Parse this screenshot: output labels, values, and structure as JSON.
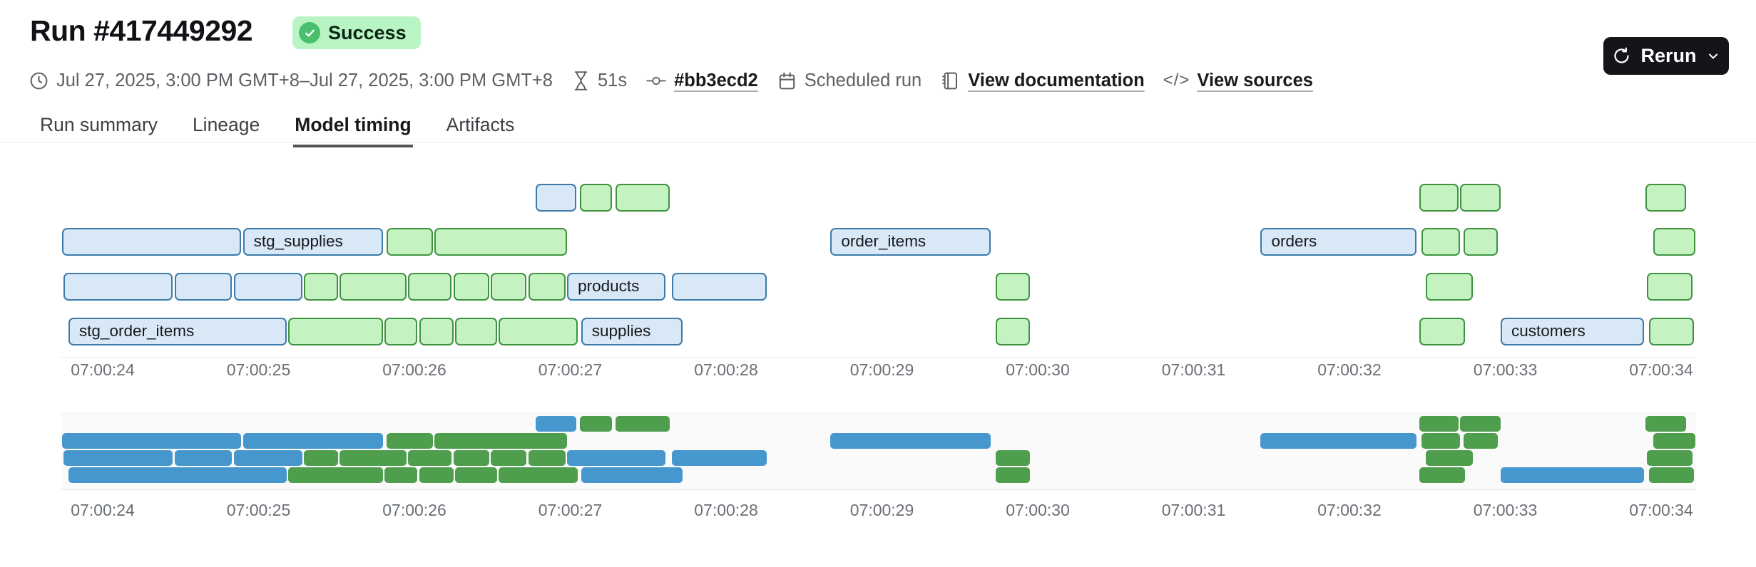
{
  "header": {
    "title": "Run #417449292",
    "status": "Success",
    "meta": {
      "time_range": "Jul 27, 2025, 3:00 PM GMT+8–Jul 27, 2025, 3:00 PM GMT+8",
      "duration": "51s",
      "commit": "#bb3ecd2",
      "trigger": "Scheduled run",
      "docs_link": "View documentation",
      "sources_link": "View sources",
      "code_glyph": "</>"
    },
    "rerun_label": "Rerun"
  },
  "tabs": [
    {
      "label": "Run summary",
      "active": false
    },
    {
      "label": "Lineage",
      "active": false
    },
    {
      "label": "Model timing",
      "active": true
    },
    {
      "label": "Artifacts",
      "active": false
    }
  ],
  "chart_data": {
    "type": "gantt",
    "title": "Model timing",
    "time_origin_label": "07:00:24",
    "x_axis": {
      "tick_labels": [
        "07:00:24",
        "07:00:25",
        "07:00:26",
        "07:00:27",
        "07:00:28",
        "07:00:29",
        "07:00:30",
        "07:00:31",
        "07:00:32",
        "07:00:33",
        "07:00:34"
      ],
      "seconds_per_tick": 1,
      "range_seconds": [
        -0.45,
        10.6
      ],
      "grid": false
    },
    "colors": {
      "bar_blue_fill": "#d8e8f7",
      "bar_blue_border": "#3c7bab",
      "bar_green_fill": "#c4f2c1",
      "bar_green_border": "#3f9340",
      "nav_blue": "#4697ce",
      "nav_green": "#4e9e4e"
    },
    "navigator_mirrors_main": true,
    "rows": [
      {
        "bars": [
          {
            "start": 2.78,
            "end": 3.04,
            "color": "blue",
            "label": ""
          },
          {
            "start": 3.06,
            "end": 3.27,
            "color": "green",
            "label": ""
          },
          {
            "start": 3.29,
            "end": 3.64,
            "color": "green",
            "label": ""
          },
          {
            "start": 8.45,
            "end": 8.7,
            "color": "green",
            "label": ""
          },
          {
            "start": 8.71,
            "end": 8.97,
            "color": "green",
            "label": ""
          },
          {
            "start": 9.9,
            "end": 10.16,
            "color": "green",
            "label": ""
          }
        ]
      },
      {
        "bars": [
          {
            "start": -0.26,
            "end": 0.89,
            "color": "blue",
            "label": ""
          },
          {
            "start": 0.9,
            "end": 1.8,
            "color": "blue",
            "label": "stg_supplies"
          },
          {
            "start": 1.82,
            "end": 2.12,
            "color": "green",
            "label": ""
          },
          {
            "start": 2.13,
            "end": 2.98,
            "color": "green",
            "label": ""
          },
          {
            "start": 4.67,
            "end": 5.7,
            "color": "blue",
            "label": "order_items"
          },
          {
            "start": 7.43,
            "end": 8.43,
            "color": "blue",
            "label": "orders"
          },
          {
            "start": 8.46,
            "end": 8.71,
            "color": "green",
            "label": ""
          },
          {
            "start": 8.73,
            "end": 8.95,
            "color": "green",
            "label": ""
          },
          {
            "start": 9.95,
            "end": 10.22,
            "color": "green",
            "label": ""
          }
        ]
      },
      {
        "bars": [
          {
            "start": -0.25,
            "end": 0.45,
            "color": "blue",
            "label": ""
          },
          {
            "start": 0.46,
            "end": 0.83,
            "color": "blue",
            "label": ""
          },
          {
            "start": 0.84,
            "end": 1.28,
            "color": "blue",
            "label": ""
          },
          {
            "start": 1.29,
            "end": 1.51,
            "color": "green",
            "label": ""
          },
          {
            "start": 1.52,
            "end": 1.95,
            "color": "green",
            "label": ""
          },
          {
            "start": 1.96,
            "end": 2.24,
            "color": "green",
            "label": ""
          },
          {
            "start": 2.25,
            "end": 2.48,
            "color": "green",
            "label": ""
          },
          {
            "start": 2.49,
            "end": 2.72,
            "color": "green",
            "label": ""
          },
          {
            "start": 2.73,
            "end": 2.97,
            "color": "green",
            "label": ""
          },
          {
            "start": 2.98,
            "end": 3.61,
            "color": "blue",
            "label": "products"
          },
          {
            "start": 3.65,
            "end": 4.26,
            "color": "blue",
            "label": ""
          },
          {
            "start": 5.73,
            "end": 5.95,
            "color": "green",
            "label": ""
          },
          {
            "start": 8.49,
            "end": 8.79,
            "color": "green",
            "label": ""
          },
          {
            "start": 9.91,
            "end": 10.2,
            "color": "green",
            "label": ""
          }
        ]
      },
      {
        "bars": [
          {
            "start": -0.22,
            "end": 1.18,
            "color": "blue",
            "label": "stg_order_items"
          },
          {
            "start": 1.19,
            "end": 1.8,
            "color": "green",
            "label": ""
          },
          {
            "start": 1.81,
            "end": 2.02,
            "color": "green",
            "label": ""
          },
          {
            "start": 2.03,
            "end": 2.25,
            "color": "green",
            "label": ""
          },
          {
            "start": 2.26,
            "end": 2.53,
            "color": "green",
            "label": ""
          },
          {
            "start": 2.54,
            "end": 3.05,
            "color": "green",
            "label": ""
          },
          {
            "start": 3.07,
            "end": 3.72,
            "color": "blue",
            "label": "supplies"
          },
          {
            "start": 5.73,
            "end": 5.95,
            "color": "green",
            "label": ""
          },
          {
            "start": 8.45,
            "end": 8.74,
            "color": "green",
            "label": ""
          },
          {
            "start": 8.97,
            "end": 9.89,
            "color": "blue",
            "label": "customers"
          },
          {
            "start": 9.92,
            "end": 10.21,
            "color": "green",
            "label": ""
          }
        ]
      }
    ]
  }
}
